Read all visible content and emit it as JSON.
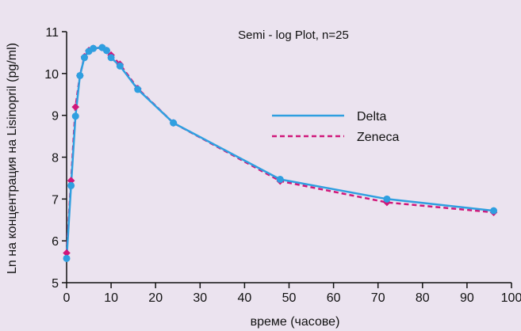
{
  "chart_data": {
    "type": "line",
    "title": "Semi - log Plot, n=25",
    "xlabel": "време (часове)",
    "ylabel": "Ln на концентрация на Lisinopril (pg/ml)",
    "xlim": [
      0,
      100
    ],
    "ylim": [
      5,
      11
    ],
    "x_ticks": [
      "0",
      "10",
      "20",
      "30",
      "40",
      "50",
      "60",
      "70",
      "80",
      "90",
      "100"
    ],
    "y_ticks": [
      "5",
      "6",
      "7",
      "8",
      "9",
      "10",
      "11"
    ],
    "grid": false,
    "legend_position": "right-middle",
    "colors": {
      "background": "#ebe3ef",
      "delta": "#2f9fe0",
      "zeneca": "#d0177a",
      "axis": "#111111"
    },
    "series": [
      {
        "name": "Delta",
        "line_style": "solid",
        "marker": "circle",
        "points": [
          [
            0,
            5.58
          ],
          [
            1,
            7.32
          ],
          [
            2,
            8.98
          ],
          [
            3,
            9.95
          ],
          [
            4,
            10.38
          ],
          [
            5,
            10.53
          ],
          [
            6,
            10.6
          ],
          [
            8,
            10.62
          ],
          [
            9,
            10.55
          ],
          [
            10,
            10.38
          ],
          [
            12,
            10.18
          ],
          [
            16,
            9.62
          ],
          [
            24,
            8.82
          ],
          [
            48,
            7.47
          ],
          [
            72,
            7.0
          ],
          [
            96,
            6.72
          ]
        ]
      },
      {
        "name": "Zeneca",
        "line_style": "dashed",
        "marker": "diamond",
        "points": [
          [
            0,
            5.71
          ],
          [
            1,
            7.44
          ],
          [
            2,
            9.2
          ],
          [
            3,
            9.95
          ],
          [
            4,
            10.4
          ],
          [
            5,
            10.55
          ],
          [
            6,
            10.6
          ],
          [
            8,
            10.62
          ],
          [
            9,
            10.55
          ],
          [
            10,
            10.44
          ],
          [
            12,
            10.22
          ],
          [
            16,
            9.64
          ],
          [
            24,
            8.82
          ],
          [
            48,
            7.43
          ],
          [
            72,
            6.92
          ],
          [
            96,
            6.68
          ]
        ]
      }
    ]
  }
}
